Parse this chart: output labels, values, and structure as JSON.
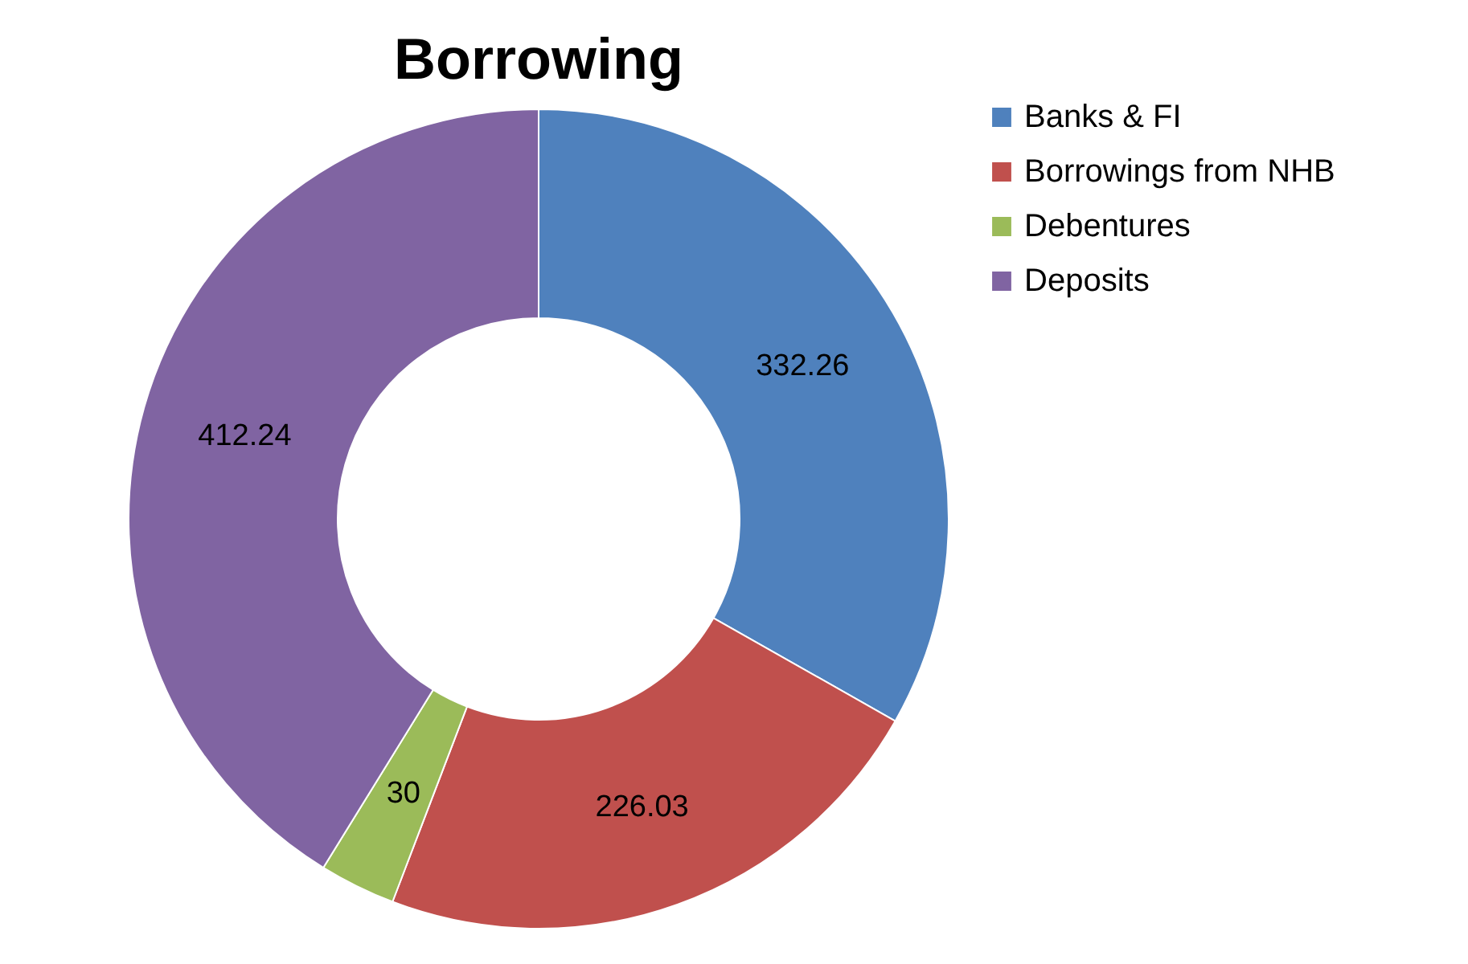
{
  "chart_data": {
    "type": "donut",
    "title": "Borrowing",
    "categories": [
      "Banks & FI",
      "Borrowings from NHB",
      "Debentures",
      "Deposits"
    ],
    "values": [
      332.26,
      226.03,
      30,
      412.24
    ],
    "colors": [
      "#4f81bd",
      "#c0504d",
      "#9bbb59",
      "#8064a2"
    ],
    "data_labels": true,
    "legend": "right"
  }
}
